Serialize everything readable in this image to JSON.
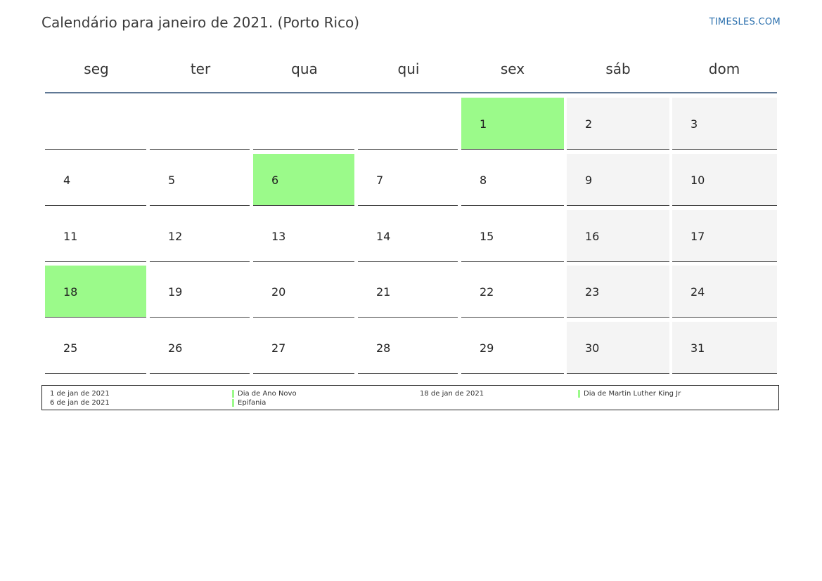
{
  "header": {
    "title": "Calendário para janeiro de 2021. (Porto Rico)",
    "brand": "TIMESLES.COM"
  },
  "calendar": {
    "weekdays": [
      "seg",
      "ter",
      "qua",
      "qui",
      "sex",
      "sáb",
      "dom"
    ],
    "first_weekday_index": 4,
    "days_in_month": 31,
    "holidays": [
      1,
      6,
      18
    ],
    "colors": {
      "holiday": "#9bfa8a",
      "weekend": "#f4f4f4",
      "header_rule": "#5f7895"
    }
  },
  "legend": {
    "items": [
      {
        "date": "1 de jan de 2021",
        "name": "Dia de Ano Novo"
      },
      {
        "date": "6 de jan de 2021",
        "name": "Epifania"
      },
      {
        "date": "18 de jan de 2021",
        "name": "Dia de Martin Luther King Jr"
      }
    ]
  }
}
